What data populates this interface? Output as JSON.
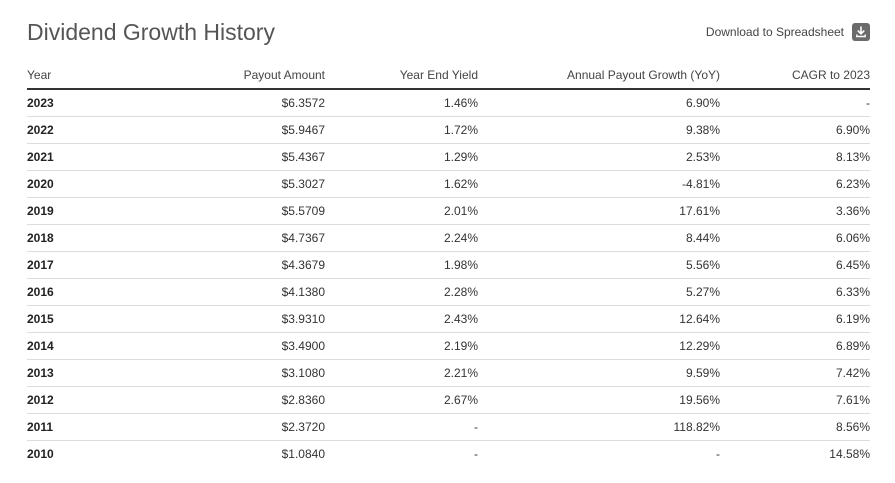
{
  "header": {
    "title": "Dividend Growth History",
    "download_label": "Download to Spreadsheet"
  },
  "icons": {
    "download": "download-icon"
  },
  "table": {
    "columns": [
      "Year",
      "Payout Amount",
      "Year End Yield",
      "Annual Payout Growth (YoY)",
      "CAGR to 2023"
    ],
    "rows": [
      [
        "2023",
        "$6.3572",
        "1.46%",
        "6.90%",
        "-"
      ],
      [
        "2022",
        "$5.9467",
        "1.72%",
        "9.38%",
        "6.90%"
      ],
      [
        "2021",
        "$5.4367",
        "1.29%",
        "2.53%",
        "8.13%"
      ],
      [
        "2020",
        "$5.3027",
        "1.62%",
        "-4.81%",
        "6.23%"
      ],
      [
        "2019",
        "$5.5709",
        "2.01%",
        "17.61%",
        "3.36%"
      ],
      [
        "2018",
        "$4.7367",
        "2.24%",
        "8.44%",
        "6.06%"
      ],
      [
        "2017",
        "$4.3679",
        "1.98%",
        "5.56%",
        "6.45%"
      ],
      [
        "2016",
        "$4.1380",
        "2.28%",
        "5.27%",
        "6.33%"
      ],
      [
        "2015",
        "$3.9310",
        "2.43%",
        "12.64%",
        "6.19%"
      ],
      [
        "2014",
        "$3.4900",
        "2.19%",
        "12.29%",
        "6.89%"
      ],
      [
        "2013",
        "$3.1080",
        "2.21%",
        "9.59%",
        "7.42%"
      ],
      [
        "2012",
        "$2.8360",
        "2.67%",
        "19.56%",
        "7.61%"
      ],
      [
        "2011",
        "$2.3720",
        "-",
        "118.82%",
        "8.56%"
      ],
      [
        "2010",
        "$1.0840",
        "-",
        "-",
        "14.58%"
      ]
    ]
  }
}
